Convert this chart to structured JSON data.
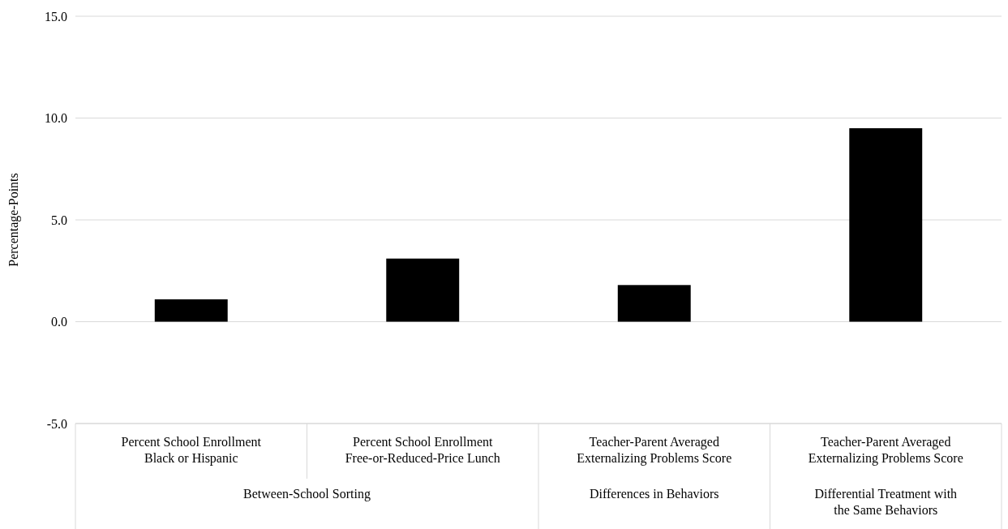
{
  "chart_data": {
    "type": "bar",
    "ylabel": "Percentage-Points",
    "categories": [
      "Percent School Enrollment Black or Hispanic",
      "Percent School Enrollment Free-or-Reduced-Price Lunch",
      "Teacher-Parent Averaged Externalizing Problems Score",
      "Teacher-Parent Averaged Externalizing Problems Score"
    ],
    "values": [
      1.1,
      3.1,
      1.8,
      9.5
    ],
    "color": "#000000",
    "ylim": [
      -5,
      15
    ],
    "yticks": [
      {
        "value": -5,
        "label": "-5.0"
      },
      {
        "value": 0,
        "label": "0.0"
      },
      {
        "value": 5,
        "label": "5.0"
      },
      {
        "value": 10,
        "label": "10.0"
      },
      {
        "value": 15,
        "label": "15.0"
      }
    ],
    "grid": true,
    "annotations": [
      "Between-School Sorting",
      "Differences in Behaviors",
      "Differential Treatment with the Same Behaviors"
    ]
  }
}
